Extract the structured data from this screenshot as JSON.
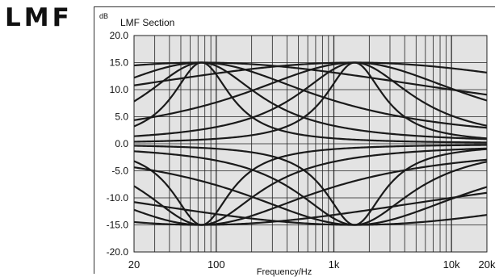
{
  "brand": "LMF",
  "chart_data": {
    "type": "line",
    "title": "LMF Section",
    "xlabel": "Frequency/Hz",
    "ylabel": "dB",
    "x_scale": "log",
    "xlim": [
      20,
      20000
    ],
    "ylim": [
      -20,
      20
    ],
    "xticks": [
      20,
      100,
      1000,
      10000,
      20000
    ],
    "xtick_labels": [
      "20",
      "100",
      "1k",
      "10k",
      "20k"
    ],
    "yticks": [
      20,
      15,
      10,
      5,
      0,
      -5,
      -10,
      -15,
      -20
    ],
    "ytick_labels": [
      "20.0",
      "15.0",
      "10.0",
      "5.0",
      "0.0",
      "-5.0",
      "-10.0",
      "-15.0",
      "-20.0"
    ],
    "grid": true,
    "background": "#e3e3e3",
    "curve_color": "#1a1a1a",
    "center_frequencies": [
      75,
      1500
    ],
    "series": [
      {
        "fc": 75,
        "gain": 15,
        "q": 0.3
      },
      {
        "fc": 75,
        "gain": 15,
        "q": 0.6
      },
      {
        "fc": 75,
        "gain": 15,
        "q": 1.2
      },
      {
        "fc": 75,
        "gain": 15,
        "q": 3.0
      },
      {
        "fc": 75,
        "gain": -15,
        "q": 0.3
      },
      {
        "fc": 75,
        "gain": -15,
        "q": 0.6
      },
      {
        "fc": 75,
        "gain": -15,
        "q": 1.2
      },
      {
        "fc": 75,
        "gain": -15,
        "q": 3.0
      },
      {
        "fc": 1500,
        "gain": 15,
        "q": 0.3
      },
      {
        "fc": 1500,
        "gain": 15,
        "q": 0.6
      },
      {
        "fc": 1500,
        "gain": 15,
        "q": 1.2
      },
      {
        "fc": 1500,
        "gain": 15,
        "q": 3.0
      },
      {
        "fc": 1500,
        "gain": -15,
        "q": 0.3
      },
      {
        "fc": 1500,
        "gain": -15,
        "q": 0.6
      },
      {
        "fc": 1500,
        "gain": -15,
        "q": 1.2
      },
      {
        "fc": 1500,
        "gain": -15,
        "q": 3.0
      }
    ]
  }
}
